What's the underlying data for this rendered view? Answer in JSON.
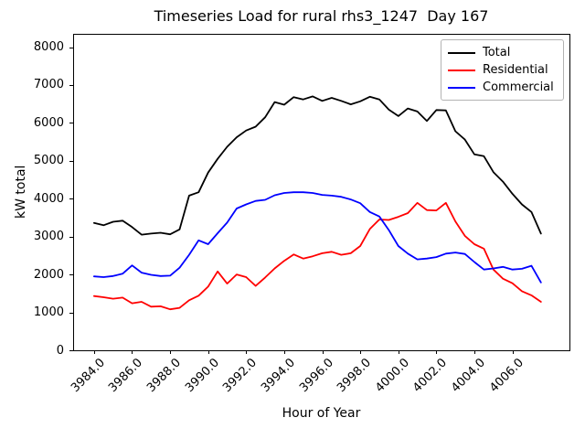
{
  "chart_data": {
    "type": "line",
    "title": "Timeseries Load for rural rhs3_1247  Day 167",
    "xlabel": "Hour of Year",
    "ylabel": "kW total",
    "xlim": [
      3982.9,
      4009.0
    ],
    "ylim": [
      0,
      8350
    ],
    "grid": false,
    "legend_position": "upper right",
    "x_ticks": [
      {
        "value": 3984,
        "label": "3984.0"
      },
      {
        "value": 3986,
        "label": "3986.0"
      },
      {
        "value": 3988,
        "label": "3988.0"
      },
      {
        "value": 3990,
        "label": "3990.0"
      },
      {
        "value": 3992,
        "label": "3992.0"
      },
      {
        "value": 3994,
        "label": "3994.0"
      },
      {
        "value": 3996,
        "label": "3996.0"
      },
      {
        "value": 3998,
        "label": "3998.0"
      },
      {
        "value": 4000,
        "label": "4000.0"
      },
      {
        "value": 4002,
        "label": "4002.0"
      },
      {
        "value": 4004,
        "label": "4004.0"
      },
      {
        "value": 4006,
        "label": "4006.0"
      }
    ],
    "y_ticks": [
      {
        "value": 0,
        "label": "0"
      },
      {
        "value": 1000,
        "label": "1000"
      },
      {
        "value": 2000,
        "label": "2000"
      },
      {
        "value": 3000,
        "label": "3000"
      },
      {
        "value": 4000,
        "label": "4000"
      },
      {
        "value": 5000,
        "label": "5000"
      },
      {
        "value": 6000,
        "label": "6000"
      },
      {
        "value": 7000,
        "label": "7000"
      },
      {
        "value": 8000,
        "label": "8000"
      }
    ],
    "x": [
      3984,
      3984.5,
      3985,
      3985.5,
      3986,
      3986.5,
      3987,
      3987.5,
      3988,
      3988.5,
      3989,
      3989.5,
      3990,
      3990.5,
      3991,
      3991.5,
      3992,
      3992.5,
      3993,
      3993.5,
      3994,
      3994.5,
      3995,
      3995.5,
      3996,
      3996.5,
      3997,
      3997.5,
      3998,
      3998.5,
      3999,
      3999.5,
      4000,
      4000.5,
      4001,
      4001.5,
      4002,
      4002.5,
      4003,
      4003.5,
      4004,
      4004.5,
      4005,
      4005.5,
      4006,
      4006.5,
      4007,
      4007.5
    ],
    "series": [
      {
        "name": "Total",
        "color": "#000000",
        "values": [
          3360,
          3300,
          3390,
          3420,
          3250,
          3050,
          3080,
          3100,
          3060,
          3190,
          4080,
          4170,
          4690,
          5050,
          5370,
          5620,
          5800,
          5900,
          6150,
          6550,
          6480,
          6680,
          6620,
          6700,
          6580,
          6660,
          6580,
          6490,
          6570,
          6690,
          6620,
          6350,
          6180,
          6380,
          6300,
          6050,
          6340,
          6330,
          5780,
          5560,
          5170,
          5120,
          4700,
          4450,
          4130,
          3850,
          3650,
          3080
        ]
      },
      {
        "name": "Residential",
        "color": "#ff0000",
        "values": [
          1430,
          1400,
          1360,
          1390,
          1240,
          1280,
          1150,
          1160,
          1080,
          1120,
          1320,
          1440,
          1680,
          2080,
          1760,
          2000,
          1930,
          1700,
          1920,
          2160,
          2360,
          2530,
          2420,
          2480,
          2560,
          2600,
          2520,
          2560,
          2750,
          3200,
          3450,
          3440,
          3520,
          3620,
          3890,
          3700,
          3690,
          3890,
          3400,
          3020,
          2800,
          2680,
          2130,
          1890,
          1770,
          1560,
          1450,
          1280
        ]
      },
      {
        "name": "Commercial",
        "color": "#0000ff",
        "values": [
          1950,
          1930,
          1960,
          2020,
          2240,
          2050,
          1990,
          1960,
          1970,
          2180,
          2520,
          2900,
          2800,
          3090,
          3370,
          3740,
          3850,
          3940,
          3970,
          4090,
          4150,
          4170,
          4170,
          4150,
          4100,
          4080,
          4050,
          3980,
          3880,
          3650,
          3530,
          3170,
          2750,
          2550,
          2400,
          2420,
          2460,
          2550,
          2580,
          2540,
          2330,
          2130,
          2160,
          2200,
          2130,
          2150,
          2230,
          1790
        ]
      }
    ]
  }
}
